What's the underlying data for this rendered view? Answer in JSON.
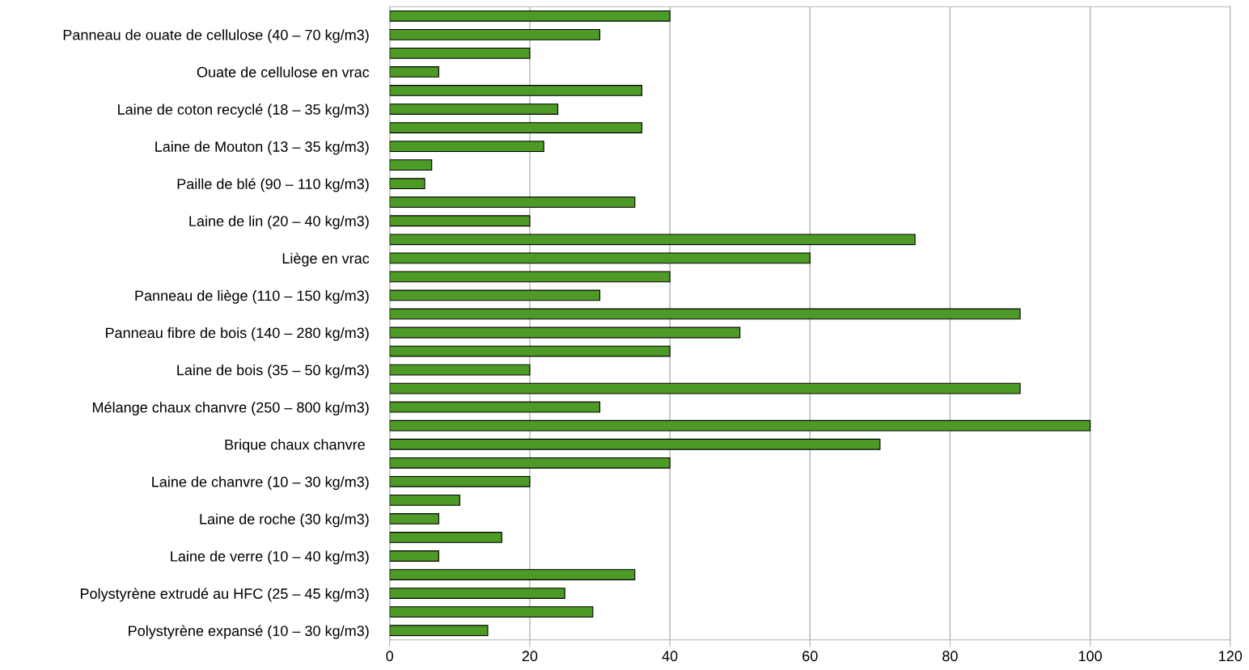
{
  "chart_data": {
    "type": "bar",
    "orientation": "horizontal",
    "categories": [
      null,
      "Panneau de ouate de cellulose (40 – 70 kg/m3)",
      null,
      "Ouate de cellulose en vrac",
      null,
      "Laine de coton recyclé (18 – 35 kg/m3)",
      null,
      "Laine de Mouton (13 – 35 kg/m3)",
      null,
      "Paille de blé (90 – 110 kg/m3)",
      null,
      "Laine de lin (20 – 40 kg/m3)",
      null,
      "Liège en vrac",
      null,
      "Panneau de liège (110 – 150 kg/m3)",
      null,
      "Panneau fibre de bois (140 – 280 kg/m3)",
      null,
      "Laine de bois (35 – 50 kg/m3)",
      null,
      "Mélange chaux chanvre (250 – 800 kg/m3)",
      null,
      "Brique chaux chanvre ",
      null,
      "Laine de chanvre (10 – 30 kg/m3)",
      null,
      "Laine de roche (30 kg/m3)",
      null,
      "Laine de verre (10 – 40 kg/m3)",
      null,
      "Polystyrène extrudé au HFC (25 – 45 kg/m3)",
      null,
      "Polystyrène expansé (10 – 30 kg/m3)"
    ],
    "values": [
      40,
      30,
      20,
      7,
      36,
      24,
      36,
      22,
      6,
      5,
      35,
      20,
      75,
      60,
      40,
      30,
      90,
      50,
      40,
      20,
      90,
      30,
      100,
      70,
      40,
      20,
      10,
      7,
      16,
      7,
      35,
      25,
      29,
      14
    ],
    "color": "#4e9a26",
    "xlim": [
      0,
      120
    ],
    "xticks": [
      0,
      20,
      40,
      60,
      80,
      100,
      120
    ],
    "grid": "x"
  }
}
